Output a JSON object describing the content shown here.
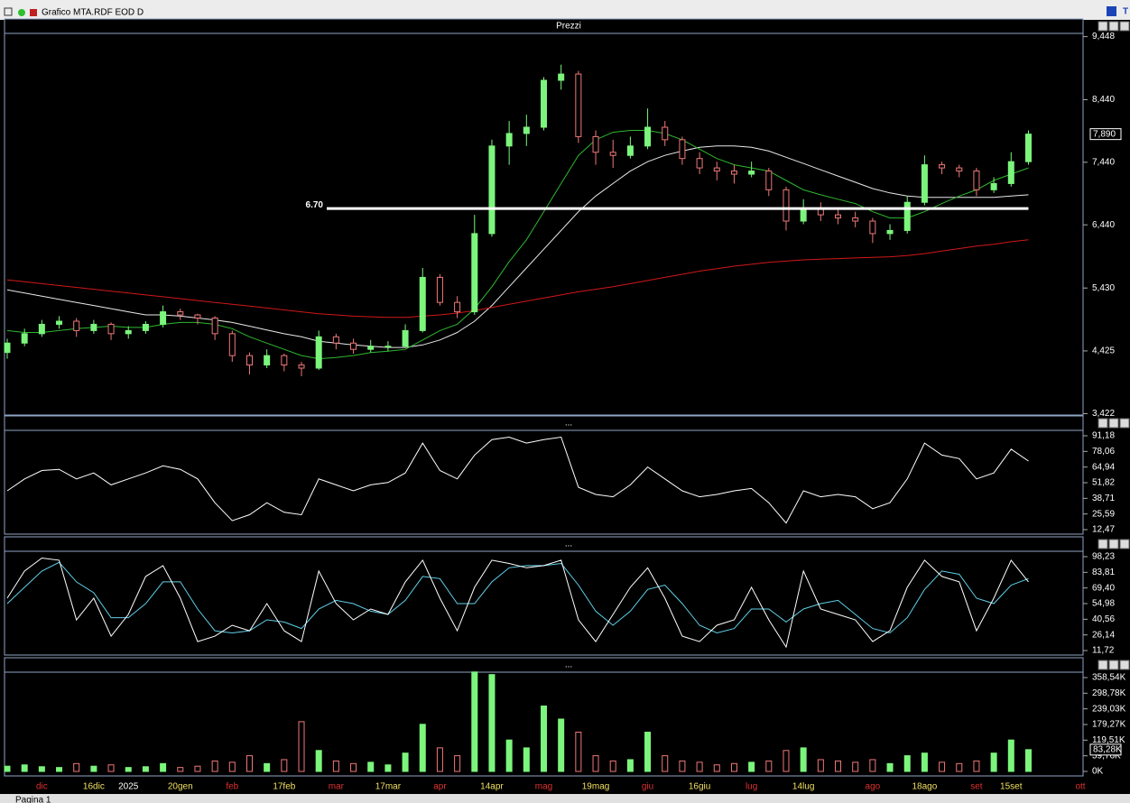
{
  "window": {
    "title": "Grafico MTA.RDF EOD D",
    "tabs": [
      "Pagina 1"
    ]
  },
  "chart_data": [
    {
      "type": "candlestick",
      "title": "Prezzi",
      "ylim": [
        3.4,
        9.5
      ],
      "yticks": [
        {
          "value": 9.448,
          "label": "9,448"
        },
        {
          "value": 8.44,
          "label": "8,440"
        },
        {
          "value": 7.44,
          "label": "7,440"
        },
        {
          "value": 6.44,
          "label": "6,440"
        },
        {
          "value": 5.43,
          "label": "5,430"
        },
        {
          "value": 4.425,
          "label": "4,425"
        },
        {
          "value": 3.422,
          "label": "3,422"
        }
      ],
      "up_color": "#7CF57C",
      "down_color": "#F07878",
      "open": [
        4.4,
        4.55,
        4.7,
        4.85,
        4.9,
        4.75,
        4.85,
        4.7,
        4.75,
        4.85,
        5.05,
        5.0,
        4.95,
        4.7,
        4.35,
        4.2,
        4.35,
        4.2,
        4.15,
        4.65,
        4.55,
        4.45,
        4.5,
        4.5,
        4.75,
        5.6,
        5.2,
        5.05,
        6.3,
        7.7,
        7.9,
        8.0,
        8.75,
        8.85,
        7.85,
        7.6,
        7.55,
        7.7,
        8.0,
        7.8,
        7.5,
        7.35,
        7.3,
        7.25,
        7.3,
        7.0,
        6.5,
        6.7,
        6.6,
        6.55,
        6.5,
        6.3,
        6.35,
        6.8,
        7.4,
        7.35,
        7.3,
        7.0,
        7.1,
        7.45
      ],
      "high": [
        4.62,
        4.78,
        4.92,
        4.98,
        4.95,
        4.92,
        4.88,
        4.82,
        4.9,
        5.15,
        5.1,
        5.02,
        4.98,
        4.75,
        4.4,
        4.45,
        4.38,
        4.25,
        4.75,
        4.7,
        4.62,
        4.6,
        4.58,
        4.85,
        5.75,
        5.65,
        5.3,
        6.6,
        7.8,
        8.1,
        8.2,
        8.8,
        9.0,
        8.9,
        7.95,
        7.8,
        7.85,
        8.3,
        8.1,
        7.85,
        7.6,
        7.45,
        7.4,
        7.45,
        7.35,
        7.05,
        6.85,
        6.8,
        6.7,
        6.65,
        6.55,
        6.45,
        6.9,
        7.55,
        7.45,
        7.4,
        7.35,
        7.2,
        7.6,
        7.95
      ],
      "low": [
        4.3,
        4.5,
        4.65,
        4.78,
        4.65,
        4.7,
        4.6,
        4.62,
        4.7,
        4.8,
        4.92,
        4.85,
        4.6,
        4.25,
        4.05,
        4.15,
        4.1,
        4.02,
        4.12,
        4.45,
        4.38,
        4.4,
        4.42,
        4.48,
        4.72,
        5.15,
        4.95,
        5.0,
        6.25,
        7.4,
        7.7,
        7.95,
        8.6,
        7.75,
        7.4,
        7.35,
        7.5,
        7.65,
        7.7,
        7.4,
        7.25,
        7.15,
        7.1,
        7.2,
        6.9,
        6.35,
        6.45,
        6.5,
        6.45,
        6.4,
        6.15,
        6.2,
        6.3,
        6.75,
        7.25,
        7.2,
        6.9,
        6.95,
        7.05,
        7.4
      ],
      "close": [
        4.55,
        4.7,
        4.85,
        4.9,
        4.75,
        4.85,
        4.7,
        4.75,
        4.85,
        5.05,
        5.0,
        4.95,
        4.7,
        4.35,
        4.2,
        4.35,
        4.2,
        4.15,
        4.65,
        4.55,
        4.45,
        4.5,
        4.5,
        4.75,
        5.6,
        5.2,
        5.05,
        6.3,
        7.7,
        7.9,
        8.0,
        8.75,
        8.85,
        7.85,
        7.6,
        7.55,
        7.7,
        8.0,
        7.8,
        7.5,
        7.35,
        7.3,
        7.25,
        7.3,
        7.0,
        6.5,
        6.7,
        6.6,
        6.55,
        6.5,
        6.3,
        6.35,
        6.8,
        7.4,
        7.35,
        7.3,
        7.0,
        7.1,
        7.45,
        7.89
      ],
      "series": [
        {
          "color": "#e8e8e8",
          "values": [
            5.4,
            5.35,
            5.3,
            5.25,
            5.2,
            5.15,
            5.1,
            5.05,
            5.0,
            5.0,
            4.98,
            4.95,
            4.92,
            4.88,
            4.82,
            4.76,
            4.7,
            4.65,
            4.58,
            4.55,
            4.52,
            4.5,
            4.48,
            4.48,
            4.52,
            4.6,
            4.72,
            4.9,
            5.15,
            5.45,
            5.75,
            6.05,
            6.35,
            6.65,
            6.9,
            7.1,
            7.3,
            7.45,
            7.55,
            7.62,
            7.68,
            7.7,
            7.7,
            7.68,
            7.62,
            7.52,
            7.42,
            7.32,
            7.22,
            7.12,
            7.02,
            6.95,
            6.9,
            6.88,
            6.88,
            6.88,
            6.88,
            6.88,
            6.9,
            6.92
          ]
        },
        {
          "color": "#d01818",
          "values": [
            5.56,
            5.53,
            5.5,
            5.47,
            5.44,
            5.41,
            5.38,
            5.35,
            5.32,
            5.29,
            5.26,
            5.23,
            5.2,
            5.17,
            5.14,
            5.11,
            5.08,
            5.05,
            5.02,
            5.0,
            4.98,
            4.97,
            4.96,
            4.96,
            4.98,
            5.0,
            5.03,
            5.07,
            5.12,
            5.17,
            5.22,
            5.27,
            5.32,
            5.37,
            5.41,
            5.45,
            5.5,
            5.55,
            5.6,
            5.65,
            5.7,
            5.74,
            5.78,
            5.81,
            5.84,
            5.86,
            5.88,
            5.89,
            5.9,
            5.91,
            5.92,
            5.93,
            5.95,
            5.98,
            6.02,
            6.06,
            6.1,
            6.13,
            6.17,
            6.2
          ]
        },
        {
          "color": "#2fb82f",
          "values": [
            4.75,
            4.72,
            4.72,
            4.75,
            4.78,
            4.8,
            4.82,
            4.8,
            4.8,
            4.85,
            4.88,
            4.88,
            4.85,
            4.78,
            4.65,
            4.55,
            4.45,
            4.35,
            4.3,
            4.32,
            4.35,
            4.4,
            4.42,
            4.45,
            4.6,
            4.75,
            4.85,
            5.1,
            5.45,
            5.85,
            6.2,
            6.65,
            7.1,
            7.55,
            7.8,
            7.92,
            7.95,
            7.95,
            7.9,
            7.8,
            7.65,
            7.5,
            7.4,
            7.35,
            7.3,
            7.15,
            7.0,
            6.92,
            6.85,
            6.78,
            6.65,
            6.55,
            6.55,
            6.65,
            6.78,
            6.9,
            7.0,
            7.15,
            7.25,
            7.35
          ]
        }
      ],
      "hline": {
        "value": 6.7,
        "label": "6.70"
      },
      "last_label": {
        "value": 7.89,
        "label": "7,890"
      }
    },
    {
      "type": "line",
      "title": "...",
      "ylim": [
        8.7,
        95.7
      ],
      "yticks": [
        {
          "value": 91.18,
          "label": "91,18"
        },
        {
          "value": 78.06,
          "label": "78,06"
        },
        {
          "value": 64.94,
          "label": "64,94"
        },
        {
          "value": 51.82,
          "label": "51,82"
        },
        {
          "value": 38.71,
          "label": "38,71"
        },
        {
          "value": 25.59,
          "label": "25,59"
        },
        {
          "value": 12.47,
          "label": "12,47"
        }
      ],
      "series": [
        {
          "color": "#ffffff",
          "values": [
            45,
            55,
            62,
            63,
            55,
            60,
            50,
            55,
            60,
            66,
            63,
            55,
            35,
            20,
            25,
            35,
            27,
            25,
            55,
            50,
            45,
            50,
            52,
            60,
            85,
            62,
            55,
            75,
            88,
            90,
            85,
            88,
            90,
            48,
            42,
            40,
            50,
            65,
            55,
            45,
            40,
            42,
            45,
            47,
            35,
            18,
            45,
            40,
            42,
            40,
            30,
            35,
            55,
            85,
            75,
            72,
            55,
            60,
            80,
            70
          ]
        }
      ]
    },
    {
      "type": "line",
      "title": "...",
      "ylim": [
        7.6,
        103.2
      ],
      "yticks": [
        {
          "value": 98.23,
          "label": "98,23"
        },
        {
          "value": 83.81,
          "label": "83,81"
        },
        {
          "value": 69.4,
          "label": "69,40"
        },
        {
          "value": 54.98,
          "label": "54,98"
        },
        {
          "value": 40.56,
          "label": "40,56"
        },
        {
          "value": 26.14,
          "label": "26,14"
        },
        {
          "value": 11.72,
          "label": "11,72"
        }
      ],
      "series": [
        {
          "color": "#5fd0e8",
          "values": [
            55,
            70,
            85,
            93,
            75,
            65,
            42,
            42,
            55,
            75,
            75,
            50,
            30,
            28,
            30,
            40,
            38,
            32,
            50,
            58,
            55,
            48,
            45,
            58,
            80,
            78,
            55,
            55,
            75,
            88,
            90,
            90,
            92,
            72,
            48,
            35,
            48,
            68,
            72,
            55,
            35,
            28,
            32,
            50,
            50,
            38,
            50,
            55,
            58,
            45,
            32,
            28,
            42,
            68,
            85,
            82,
            60,
            55,
            72,
            78
          ]
        },
        {
          "color": "#ffffff",
          "values": [
            60,
            85,
            97,
            95,
            40,
            60,
            25,
            45,
            80,
            90,
            60,
            20,
            25,
            35,
            30,
            55,
            30,
            20,
            85,
            55,
            40,
            50,
            45,
            75,
            95,
            60,
            30,
            70,
            95,
            92,
            88,
            90,
            95,
            40,
            20,
            45,
            70,
            88,
            60,
            25,
            20,
            35,
            40,
            70,
            40,
            15,
            85,
            50,
            45,
            40,
            20,
            30,
            70,
            95,
            80,
            75,
            30,
            60,
            95,
            75
          ]
        }
      ]
    },
    {
      "type": "bar",
      "title": "...",
      "ylim": [
        -17200,
        379200
      ],
      "yticks": [
        {
          "value": 358540,
          "label": "358,54K"
        },
        {
          "value": 298780,
          "label": "298,78K"
        },
        {
          "value": 239030,
          "label": "239,03K"
        },
        {
          "value": 179270,
          "label": "179,27K"
        },
        {
          "value": 119510,
          "label": "119,51K"
        },
        {
          "value": 59760,
          "label": "59,76K"
        },
        {
          "value": 0,
          "label": "0K"
        }
      ],
      "categories": [
        null,
        null,
        "dic",
        null,
        null,
        "16dic",
        null,
        "2025",
        null,
        null,
        "20gen",
        null,
        null,
        "feb",
        null,
        null,
        "17feb",
        null,
        null,
        "mar",
        null,
        null,
        "17mar",
        null,
        null,
        "apr",
        null,
        null,
        "14apr",
        null,
        null,
        "mag",
        null,
        null,
        "19mag",
        null,
        null,
        "giu",
        null,
        null,
        "16giu",
        null,
        null,
        "lug",
        null,
        null,
        "14lug",
        null,
        null,
        null,
        "ago",
        null,
        null,
        "18ago",
        null,
        null,
        "set",
        null,
        "15set",
        null,
        null,
        null,
        "ott"
      ],
      "values": [
        20000,
        25000,
        18000,
        15000,
        30000,
        20000,
        25000,
        15000,
        18000,
        30000,
        15000,
        20000,
        40000,
        35000,
        60000,
        30000,
        45000,
        190000,
        80000,
        40000,
        30000,
        35000,
        25000,
        70000,
        180000,
        90000,
        60000,
        380000,
        370000,
        120000,
        90000,
        250000,
        200000,
        150000,
        60000,
        40000,
        45000,
        150000,
        60000,
        40000,
        35000,
        25000,
        30000,
        35000,
        40000,
        80000,
        90000,
        45000,
        40000,
        35000,
        45000,
        30000,
        60000,
        70000,
        35000,
        30000,
        40000,
        70000,
        120000,
        83280,
        null,
        null,
        null
      ],
      "last_label": {
        "value": 83280,
        "label": "83,28K"
      }
    }
  ]
}
